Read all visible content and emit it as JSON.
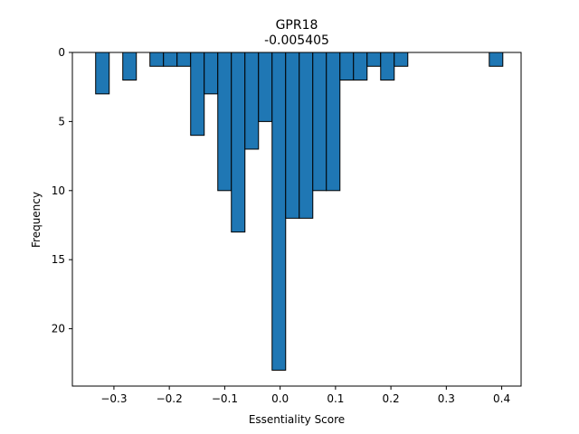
{
  "chart_data": {
    "type": "bar",
    "title": "GPR18",
    "subtitle": "-0.005405",
    "xlabel": "Essentiality Score",
    "ylabel": "Frequency",
    "y_inverted": true,
    "xlim": [
      -0.375,
      0.435
    ],
    "ylim": [
      0,
      24.15
    ],
    "bin_width": 0.0245,
    "x_ticks": [
      -0.3,
      -0.2,
      -0.1,
      0.0,
      0.1,
      0.2,
      0.3,
      0.4
    ],
    "x_tick_labels": [
      "−0.3",
      "−0.2",
      "−0.1",
      "0.0",
      "0.1",
      "0.2",
      "0.3",
      "0.4"
    ],
    "y_ticks": [
      0,
      5,
      10,
      15,
      20
    ],
    "y_tick_labels": [
      "0",
      "5",
      "10",
      "15",
      "20"
    ],
    "grid": false,
    "legend": "none",
    "bar_color": "#1f77b4",
    "edge_color": "#000000",
    "bins": [
      {
        "x0": -0.333,
        "x1": -0.3085,
        "count": 3
      },
      {
        "x0": -0.3085,
        "x1": -0.284,
        "count": 0
      },
      {
        "x0": -0.284,
        "x1": -0.2595,
        "count": 2
      },
      {
        "x0": -0.2595,
        "x1": -0.235,
        "count": 0
      },
      {
        "x0": -0.235,
        "x1": -0.2105,
        "count": 1
      },
      {
        "x0": -0.2105,
        "x1": -0.186,
        "count": 1
      },
      {
        "x0": -0.186,
        "x1": -0.1615,
        "count": 1
      },
      {
        "x0": -0.1615,
        "x1": -0.137,
        "count": 6
      },
      {
        "x0": -0.137,
        "x1": -0.1125,
        "count": 3
      },
      {
        "x0": -0.1125,
        "x1": -0.088,
        "count": 10
      },
      {
        "x0": -0.088,
        "x1": -0.0635,
        "count": 13
      },
      {
        "x0": -0.0635,
        "x1": -0.039,
        "count": 7
      },
      {
        "x0": -0.039,
        "x1": -0.0145,
        "count": 5
      },
      {
        "x0": -0.0145,
        "x1": 0.01,
        "count": 23
      },
      {
        "x0": 0.01,
        "x1": 0.0345,
        "count": 12
      },
      {
        "x0": 0.0345,
        "x1": 0.059,
        "count": 12
      },
      {
        "x0": 0.059,
        "x1": 0.0835,
        "count": 10
      },
      {
        "x0": 0.0835,
        "x1": 0.108,
        "count": 10
      },
      {
        "x0": 0.108,
        "x1": 0.1325,
        "count": 2
      },
      {
        "x0": 0.1325,
        "x1": 0.157,
        "count": 2
      },
      {
        "x0": 0.157,
        "x1": 0.1815,
        "count": 1
      },
      {
        "x0": 0.1815,
        "x1": 0.206,
        "count": 2
      },
      {
        "x0": 0.206,
        "x1": 0.2305,
        "count": 1
      },
      {
        "x0": 0.2305,
        "x1": 0.255,
        "count": 0
      },
      {
        "x0": 0.255,
        "x1": 0.2795,
        "count": 0
      },
      {
        "x0": 0.2795,
        "x1": 0.304,
        "count": 0
      },
      {
        "x0": 0.304,
        "x1": 0.3285,
        "count": 0
      },
      {
        "x0": 0.3285,
        "x1": 0.353,
        "count": 0
      },
      {
        "x0": 0.353,
        "x1": 0.3775,
        "count": 0
      },
      {
        "x0": 0.3775,
        "x1": 0.402,
        "count": 1
      }
    ]
  }
}
